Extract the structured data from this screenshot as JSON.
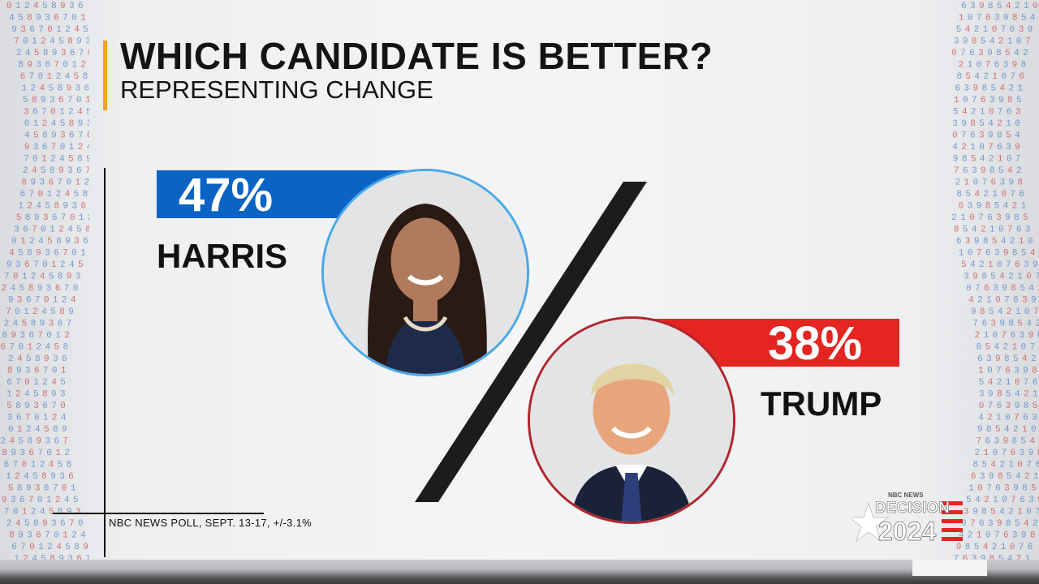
{
  "header": {
    "title": "WHICH CANDIDATE IS BETTER?",
    "subtitle": "REPRESENTING CHANGE"
  },
  "source": "NBC NEWS POLL, SEPT. 13-17, +/-3.1%",
  "logo": {
    "network": "NBC NEWS",
    "line1": "DECISION",
    "line2": "2024"
  },
  "colors": {
    "harris": "#0b63c4",
    "trump": "#e52521",
    "accent": "#f2a413"
  },
  "chart_data": {
    "type": "bar",
    "categories": [
      "HARRIS",
      "TRUMP"
    ],
    "values": [
      47,
      38
    ],
    "labels": [
      "47%",
      "38%"
    ],
    "title": "WHICH CANDIDATE IS BETTER?",
    "subtitle": "REPRESENTING CHANGE",
    "unit": "%"
  }
}
